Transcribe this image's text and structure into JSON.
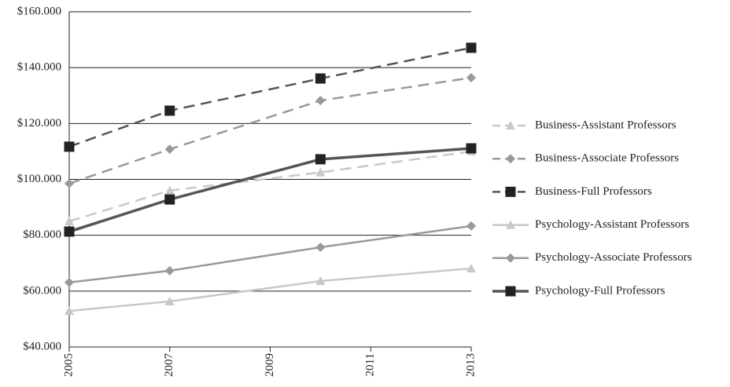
{
  "chart_data": {
    "type": "line",
    "x": [
      2005,
      2007,
      2010,
      2013
    ],
    "xlim": [
      2005,
      2013
    ],
    "xticks": [
      2005,
      2007,
      2009,
      2011,
      2013
    ],
    "ylim": [
      40000,
      160000
    ],
    "yticks": [
      {
        "value": 40000,
        "label": "$40.000"
      },
      {
        "value": 60000,
        "label": "$60.000"
      },
      {
        "value": 80000,
        "label": "$80.000"
      },
      {
        "value": 100000,
        "label": "$100.000"
      },
      {
        "value": 120000,
        "label": "$120.000"
      },
      {
        "value": 140000,
        "label": "$140.000"
      },
      {
        "value": 160000,
        "label": "$160.000"
      }
    ],
    "grid": true,
    "legend": "right",
    "series": [
      {
        "name": "Business-Assistant Professors",
        "color": "#c8c8c8",
        "dashed": true,
        "marker": "triangle",
        "values": [
          85000,
          96000,
          102500,
          110000
        ]
      },
      {
        "name": "Business-Associate Professors",
        "color": "#999999",
        "dashed": true,
        "marker": "diamond",
        "values": [
          98500,
          110800,
          128200,
          136400
        ]
      },
      {
        "name": "Business-Full Professors",
        "color": "#555555",
        "dashed": true,
        "marker": "square",
        "values": [
          111700,
          124600,
          136100,
          147100
        ]
      },
      {
        "name": "Psychology-Assistant Professors",
        "color": "#c8c8c8",
        "dashed": false,
        "marker": "triangle",
        "values": [
          52900,
          56300,
          63600,
          68100
        ]
      },
      {
        "name": "Psychology-Associate Professors",
        "color": "#999999",
        "dashed": false,
        "marker": "diamond",
        "values": [
          63100,
          67300,
          75700,
          83300
        ]
      },
      {
        "name": "Psychology-Full Professors",
        "color": "#555555",
        "dashed": false,
        "marker": "square",
        "values": [
          81300,
          92800,
          107200,
          111100
        ]
      }
    ]
  }
}
